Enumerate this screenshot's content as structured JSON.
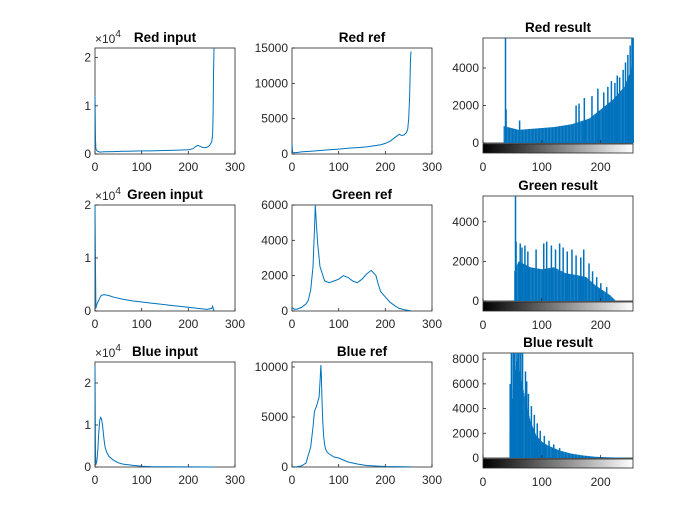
{
  "figure": {
    "color": "#0072BD"
  },
  "chart_data": [
    {
      "type": "line",
      "title": "Red input",
      "xlim": [
        0,
        300
      ],
      "ylim": [
        0,
        22000
      ],
      "xticks": [
        0,
        100,
        200,
        300
      ],
      "xtick_labels": [
        "0",
        "100",
        "200",
        "300"
      ],
      "yticks": [
        0,
        10000,
        20000
      ],
      "ytick_labels": [
        "0",
        "1",
        "2"
      ],
      "exponent": "4",
      "x": [
        0,
        1,
        2,
        5,
        10,
        20,
        40,
        60,
        80,
        100,
        120,
        140,
        160,
        180,
        200,
        210,
        215,
        220,
        225,
        230,
        235,
        240,
        245,
        250,
        252,
        253,
        254,
        255
      ],
      "y": [
        12000,
        3000,
        1000,
        600,
        400,
        450,
        500,
        550,
        600,
        650,
        650,
        700,
        750,
        800,
        900,
        1100,
        1500,
        1800,
        1600,
        1400,
        1300,
        1400,
        1700,
        2500,
        4000,
        8000,
        16000,
        22000
      ]
    },
    {
      "type": "line",
      "title": "Red ref",
      "xlim": [
        0,
        300
      ],
      "ylim": [
        0,
        15000
      ],
      "xticks": [
        0,
        100,
        200,
        300
      ],
      "xtick_labels": [
        "0",
        "100",
        "200",
        "300"
      ],
      "yticks": [
        0,
        5000,
        10000,
        15000
      ],
      "ytick_labels": [
        "0",
        "5000",
        "10000",
        "15000"
      ],
      "x": [
        0,
        1,
        3,
        10,
        20,
        40,
        60,
        80,
        100,
        120,
        140,
        160,
        180,
        190,
        200,
        210,
        220,
        230,
        235,
        240,
        245,
        248,
        250,
        252,
        253,
        254,
        255
      ],
      "y": [
        1500,
        300,
        200,
        200,
        300,
        400,
        500,
        600,
        700,
        800,
        900,
        1000,
        1200,
        1300,
        1500,
        1800,
        2300,
        2800,
        2600,
        2700,
        3000,
        3500,
        5000,
        8000,
        11000,
        13500,
        14500
      ]
    },
    {
      "type": "bar",
      "title": "Red result",
      "xlim": [
        0,
        255
      ],
      "ylim": [
        0,
        5600
      ],
      "xticks": [
        0,
        100,
        200
      ],
      "xtick_labels": [
        "0",
        "100",
        "200"
      ],
      "yticks": [
        0,
        2000,
        4000
      ],
      "ytick_labels": [
        "0",
        "2000",
        "4000"
      ],
      "colorbar": true,
      "profile": [
        [
          0,
          0
        ],
        [
          34,
          0
        ],
        [
          35,
          900
        ],
        [
          60,
          700
        ],
        [
          120,
          850
        ],
        [
          150,
          1000
        ],
        [
          180,
          1300
        ],
        [
          200,
          1800
        ],
        [
          220,
          2300
        ],
        [
          240,
          3000
        ],
        [
          250,
          3800
        ],
        [
          255,
          4500
        ]
      ],
      "spikes": [
        [
          38,
          5600
        ],
        [
          39,
          1800
        ],
        [
          62,
          1200
        ],
        [
          158,
          2000
        ],
        [
          163,
          2100
        ],
        [
          172,
          2400
        ],
        [
          185,
          2500
        ],
        [
          195,
          2900
        ],
        [
          205,
          2700
        ],
        [
          212,
          3000
        ],
        [
          218,
          3300
        ],
        [
          224,
          3200
        ],
        [
          228,
          3600
        ],
        [
          232,
          3500
        ],
        [
          238,
          3900
        ],
        [
          242,
          4300
        ],
        [
          246,
          4700
        ],
        [
          250,
          5200
        ],
        [
          253,
          5600
        ],
        [
          255,
          5600
        ]
      ]
    },
    {
      "type": "line",
      "title": "Green input",
      "xlim": [
        0,
        300
      ],
      "ylim": [
        0,
        20000
      ],
      "xticks": [
        0,
        100,
        200,
        300
      ],
      "xtick_labels": [
        "0",
        "100",
        "200",
        "300"
      ],
      "yticks": [
        0,
        10000,
        20000
      ],
      "ytick_labels": [
        "0",
        "1",
        "2"
      ],
      "exponent": "4",
      "x": [
        0,
        1,
        2,
        3,
        5,
        8,
        12,
        15,
        20,
        30,
        40,
        60,
        80,
        100,
        120,
        140,
        160,
        180,
        200,
        220,
        240,
        250,
        252,
        254,
        255
      ],
      "y": [
        20000,
        8000,
        500,
        1000,
        1500,
        2000,
        2800,
        3000,
        3100,
        2900,
        2600,
        2200,
        1900,
        1700,
        1500,
        1300,
        1100,
        900,
        700,
        500,
        300,
        500,
        900,
        200,
        50
      ]
    },
    {
      "type": "line",
      "title": "Green ref",
      "xlim": [
        0,
        300
      ],
      "ylim": [
        0,
        6000
      ],
      "xticks": [
        0,
        100,
        200,
        300
      ],
      "xtick_labels": [
        "0",
        "100",
        "200",
        "300"
      ],
      "yticks": [
        0,
        2000,
        4000,
        6000
      ],
      "ytick_labels": [
        "0",
        "2000",
        "4000",
        "6000"
      ],
      "x": [
        0,
        5,
        10,
        20,
        30,
        35,
        40,
        45,
        48,
        50,
        52,
        55,
        60,
        70,
        80,
        90,
        100,
        110,
        120,
        130,
        140,
        150,
        160,
        170,
        180,
        185,
        190,
        200,
        210,
        220,
        230,
        240,
        250,
        255
      ],
      "y": [
        200,
        100,
        100,
        200,
        400,
        600,
        1200,
        2500,
        4500,
        6000,
        5000,
        3800,
        2500,
        1700,
        1600,
        1700,
        1800,
        2000,
        1900,
        1700,
        1600,
        1800,
        2100,
        2300,
        2000,
        1500,
        1100,
        800,
        500,
        300,
        150,
        80,
        30,
        10
      ]
    },
    {
      "type": "bar",
      "title": "Green result",
      "xlim": [
        0,
        255
      ],
      "ylim": [
        0,
        5300
      ],
      "xticks": [
        0,
        100,
        200
      ],
      "xtick_labels": [
        "0",
        "100",
        "200"
      ],
      "yticks": [
        0,
        2000,
        4000
      ],
      "ytick_labels": [
        "0",
        "2000",
        "4000"
      ],
      "colorbar": true,
      "profile": [
        [
          0,
          0
        ],
        [
          52,
          0
        ],
        [
          53,
          1500
        ],
        [
          60,
          2000
        ],
        [
          80,
          1700
        ],
        [
          100,
          1600
        ],
        [
          120,
          1700
        ],
        [
          140,
          1400
        ],
        [
          160,
          1300
        ],
        [
          175,
          1200
        ],
        [
          190,
          800
        ],
        [
          205,
          500
        ],
        [
          215,
          300
        ],
        [
          222,
          100
        ],
        [
          225,
          0
        ],
        [
          255,
          0
        ]
      ],
      "spikes": [
        [
          55,
          5300
        ],
        [
          56,
          3000
        ],
        [
          63,
          2900
        ],
        [
          66,
          2700
        ],
        [
          71,
          2800
        ],
        [
          76,
          2500
        ],
        [
          90,
          2600
        ],
        [
          103,
          2900
        ],
        [
          108,
          3000
        ],
        [
          116,
          2800
        ],
        [
          123,
          2600
        ],
        [
          130,
          2900
        ],
        [
          136,
          2700
        ],
        [
          143,
          2500
        ],
        [
          151,
          2600
        ],
        [
          158,
          2300
        ],
        [
          166,
          2200
        ],
        [
          171,
          2600
        ],
        [
          180,
          1900
        ],
        [
          186,
          1500
        ],
        [
          193,
          1200
        ],
        [
          200,
          900
        ],
        [
          210,
          700
        ]
      ]
    },
    {
      "type": "line",
      "title": "Blue input",
      "xlim": [
        0,
        300
      ],
      "ylim": [
        0,
        25000
      ],
      "xticks": [
        0,
        100,
        200,
        300
      ],
      "xtick_labels": [
        "0",
        "100",
        "200",
        "300"
      ],
      "yticks": [
        0,
        10000,
        20000
      ],
      "ytick_labels": [
        "0",
        "1",
        "2"
      ],
      "exponent": "4",
      "x": [
        0,
        1,
        2,
        4,
        6,
        8,
        10,
        12,
        14,
        16,
        18,
        20,
        22,
        25,
        30,
        40,
        50,
        60,
        80,
        100,
        120,
        150,
        200,
        255
      ],
      "y": [
        24000,
        3000,
        500,
        1500,
        4000,
        8000,
        11000,
        11800,
        11500,
        10000,
        8000,
        6000,
        4500,
        3500,
        2500,
        1600,
        1000,
        700,
        400,
        200,
        100,
        50,
        20,
        10
      ]
    },
    {
      "type": "line",
      "title": "Blue ref",
      "xlim": [
        0,
        300
      ],
      "ylim": [
        0,
        10500
      ],
      "xticks": [
        0,
        100,
        200,
        300
      ],
      "xtick_labels": [
        "0",
        "100",
        "200",
        "300"
      ],
      "yticks": [
        0,
        5000,
        10000
      ],
      "ytick_labels": [
        "0",
        "5000",
        "10000"
      ],
      "x": [
        0,
        10,
        20,
        30,
        40,
        45,
        48,
        50,
        52,
        55,
        58,
        60,
        62,
        63,
        64,
        66,
        68,
        70,
        72,
        75,
        80,
        90,
        100,
        110,
        120,
        140,
        160,
        200,
        255
      ],
      "y": [
        0,
        20,
        100,
        400,
        2000,
        4000,
        5500,
        5800,
        6000,
        6500,
        7000,
        8500,
        10200,
        9000,
        7000,
        4500,
        3000,
        2200,
        1800,
        1500,
        1300,
        1000,
        900,
        700,
        500,
        300,
        150,
        50,
        10
      ]
    },
    {
      "type": "bar",
      "title": "Blue result",
      "xlim": [
        0,
        255
      ],
      "ylim": [
        0,
        8500
      ],
      "xticks": [
        0,
        100,
        200
      ],
      "xtick_labels": [
        "0",
        "100",
        "200"
      ],
      "yticks": [
        0,
        2000,
        4000,
        6000,
        8000
      ],
      "ytick_labels": [
        "0",
        "2000",
        "4000",
        "6000",
        "8000"
      ],
      "colorbar": true,
      "profile": [
        [
          0,
          0
        ],
        [
          44,
          0
        ],
        [
          45,
          2000
        ],
        [
          50,
          5500
        ],
        [
          55,
          7500
        ],
        [
          58,
          8000
        ],
        [
          62,
          7000
        ],
        [
          66,
          6000
        ],
        [
          70,
          5000
        ],
        [
          75,
          4000
        ],
        [
          80,
          3000
        ],
        [
          90,
          1800
        ],
        [
          100,
          1300
        ],
        [
          110,
          1000
        ],
        [
          130,
          600
        ],
        [
          150,
          350
        ],
        [
          170,
          200
        ],
        [
          190,
          100
        ],
        [
          210,
          60
        ],
        [
          230,
          30
        ],
        [
          250,
          10
        ],
        [
          255,
          5
        ]
      ],
      "spikes": [
        [
          46,
          6000
        ],
        [
          48,
          8500
        ],
        [
          51,
          8500
        ],
        [
          53,
          8500
        ],
        [
          56,
          8500
        ],
        [
          59,
          8500
        ],
        [
          61,
          8500
        ],
        [
          64,
          8500
        ],
        [
          67,
          8500
        ],
        [
          72,
          7000
        ],
        [
          74,
          6200
        ],
        [
          77,
          5200
        ],
        [
          82,
          4200
        ],
        [
          87,
          3500
        ],
        [
          92,
          2800
        ],
        [
          97,
          2200
        ],
        [
          104,
          1800
        ],
        [
          112,
          1400
        ],
        [
          120,
          1100
        ],
        [
          130,
          800
        ]
      ]
    }
  ]
}
